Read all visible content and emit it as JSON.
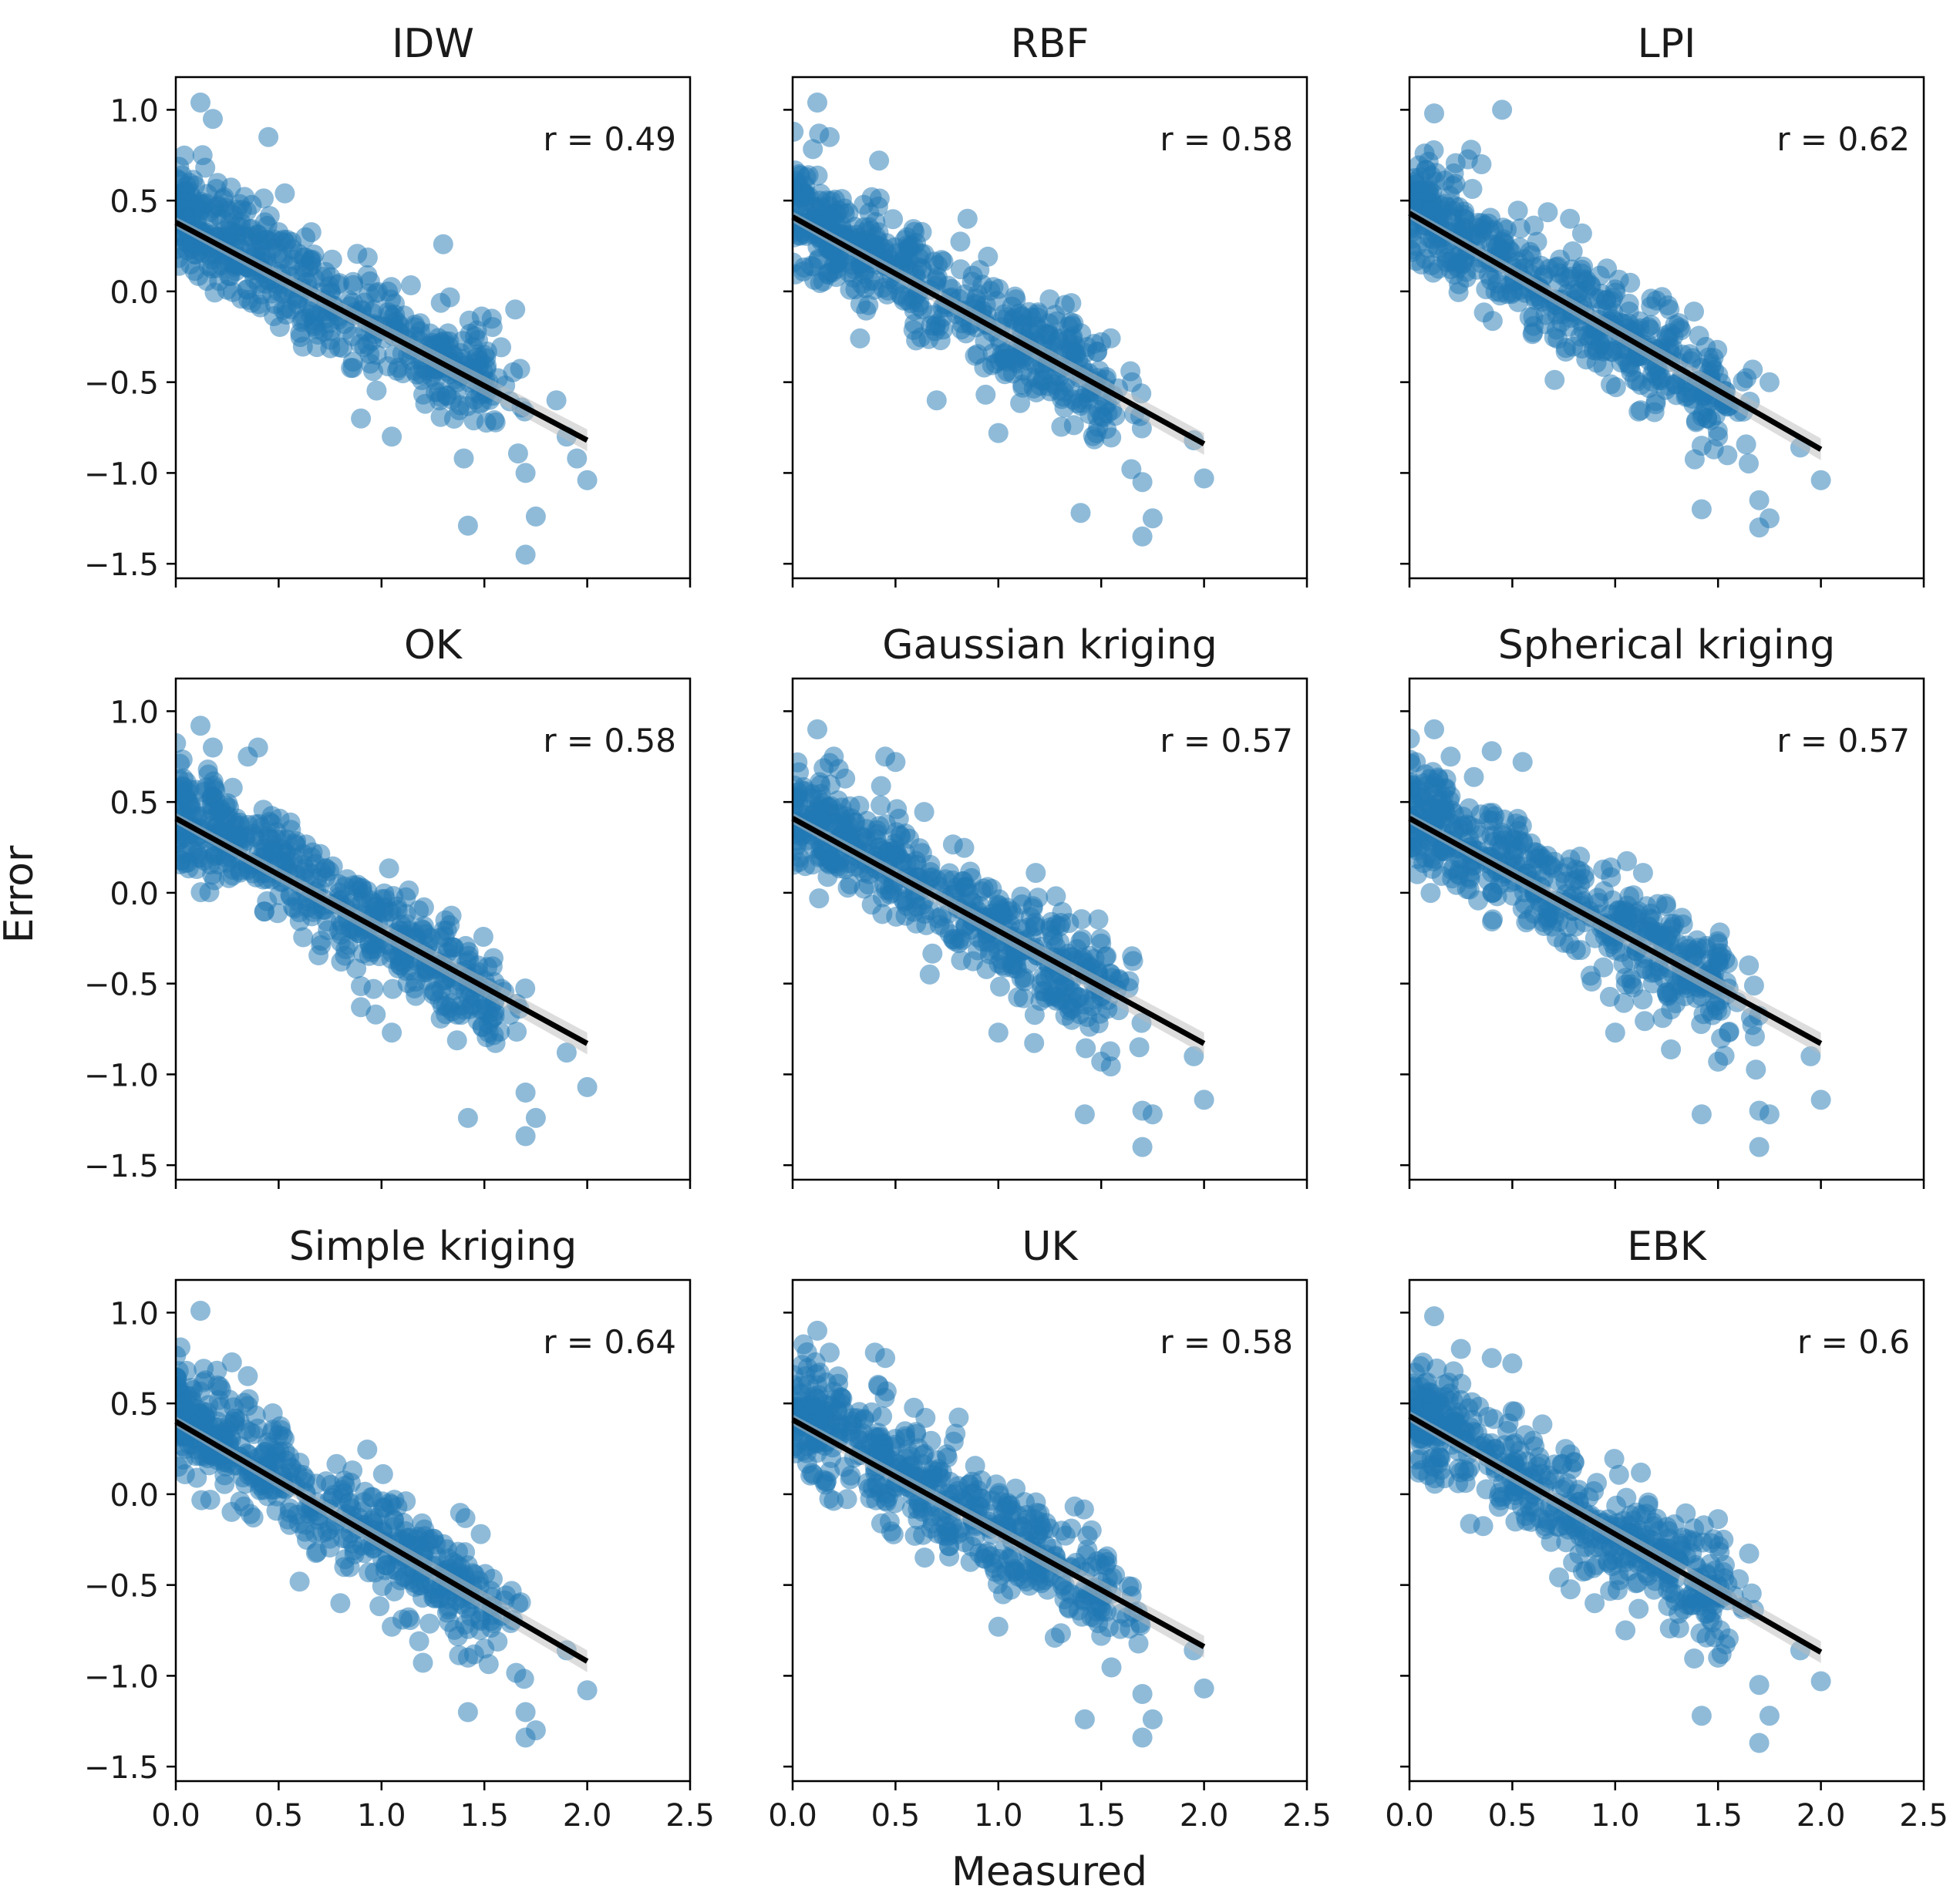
{
  "figure": {
    "ylabel": "Error",
    "xlabel": "Measured",
    "point_color": "#1f77b4",
    "line_color": "#000000"
  },
  "chart_data": [
    {
      "type": "scatter",
      "title": "IDW",
      "annotation": "r = 0.49",
      "xlim": [
        0,
        2.5
      ],
      "ylim": [
        -1.58,
        1.18
      ],
      "xticks": [
        "0.0",
        "0.5",
        "1.0",
        "1.5",
        "2.0",
        "2.5"
      ],
      "yticks": [
        "1.0",
        "0.5",
        "0.0",
        "−0.5",
        "−1.0",
        "−1.5"
      ],
      "fit": {
        "intercept": 0.38,
        "slope": -0.6
      },
      "outliers": [
        [
          0.12,
          1.04
        ],
        [
          0.18,
          0.95
        ],
        [
          0.13,
          0.75
        ],
        [
          0.45,
          0.85
        ],
        [
          1.3,
          0.26
        ],
        [
          1.65,
          -0.1
        ],
        [
          1.5,
          -0.35
        ],
        [
          1.4,
          -0.92
        ],
        [
          1.42,
          -1.29
        ],
        [
          1.7,
          -1.0
        ],
        [
          1.75,
          -1.24
        ],
        [
          1.7,
          -1.45
        ],
        [
          1.9,
          -0.8
        ],
        [
          1.95,
          -0.92
        ],
        [
          2.0,
          -1.04
        ],
        [
          1.85,
          -0.6
        ],
        [
          0.9,
          -0.7
        ],
        [
          1.05,
          -0.8
        ]
      ]
    },
    {
      "type": "scatter",
      "title": "RBF",
      "annotation": "r = 0.58",
      "xlim": [
        0,
        2.5
      ],
      "ylim": [
        -1.58,
        1.18
      ],
      "xticks": [
        "0.0",
        "0.5",
        "1.0",
        "1.5",
        "2.0",
        "2.5"
      ],
      "yticks": [
        "1.0",
        "0.5",
        "0.0",
        "−0.5",
        "−1.0",
        "−1.5"
      ],
      "fit": {
        "intercept": 0.41,
        "slope": -0.625
      },
      "outliers": [
        [
          0.12,
          1.04
        ],
        [
          0.18,
          0.85
        ],
        [
          0.42,
          0.72
        ],
        [
          0.85,
          0.4
        ],
        [
          1.5,
          -0.28
        ],
        [
          1.65,
          -0.5
        ],
        [
          1.4,
          -1.22
        ],
        [
          1.7,
          -1.05
        ],
        [
          1.75,
          -1.25
        ],
        [
          1.7,
          -1.35
        ],
        [
          2.0,
          -1.03
        ],
        [
          1.95,
          -0.82
        ],
        [
          1.0,
          -0.78
        ],
        [
          0.7,
          -0.6
        ]
      ]
    },
    {
      "type": "scatter",
      "title": "LPI",
      "annotation": "r = 0.62",
      "xlim": [
        0,
        2.5
      ],
      "ylim": [
        -1.58,
        1.18
      ],
      "xticks": [
        "0.0",
        "0.5",
        "1.0",
        "1.5",
        "2.0",
        "2.5"
      ],
      "yticks": [
        "1.0",
        "0.5",
        "0.0",
        "−0.5",
        "−1.0",
        "−1.5"
      ],
      "fit": {
        "intercept": 0.43,
        "slope": -0.65
      },
      "outliers": [
        [
          0.12,
          0.98
        ],
        [
          0.45,
          1.0
        ],
        [
          0.3,
          0.78
        ],
        [
          0.35,
          0.7
        ],
        [
          0.78,
          0.4
        ],
        [
          1.2,
          -0.05
        ],
        [
          1.42,
          -0.85
        ],
        [
          1.5,
          -0.8
        ],
        [
          1.42,
          -1.2
        ],
        [
          1.7,
          -1.15
        ],
        [
          1.75,
          -1.25
        ],
        [
          1.7,
          -1.3
        ],
        [
          2.0,
          -1.04
        ],
        [
          1.9,
          -0.86
        ],
        [
          1.75,
          -0.5
        ]
      ]
    },
    {
      "type": "scatter",
      "title": "OK",
      "annotation": "r = 0.58",
      "xlim": [
        0,
        2.5
      ],
      "ylim": [
        -1.58,
        1.18
      ],
      "xticks": [
        "0.0",
        "0.5",
        "1.0",
        "1.5",
        "2.0",
        "2.5"
      ],
      "yticks": [
        "1.0",
        "0.5",
        "0.0",
        "−0.5",
        "−1.0",
        "−1.5"
      ],
      "fit": {
        "intercept": 0.41,
        "slope": -0.62
      },
      "outliers": [
        [
          0.12,
          0.92
        ],
        [
          0.18,
          0.8
        ],
        [
          0.35,
          0.75
        ],
        [
          0.4,
          0.8
        ],
        [
          1.42,
          -1.24
        ],
        [
          1.7,
          -1.1
        ],
        [
          1.75,
          -1.24
        ],
        [
          1.7,
          -1.34
        ],
        [
          2.0,
          -1.07
        ],
        [
          1.9,
          -0.88
        ],
        [
          1.55,
          -0.68
        ],
        [
          0.9,
          -0.63
        ],
        [
          1.05,
          -0.77
        ]
      ]
    },
    {
      "type": "scatter",
      "title": "Gaussian kriging",
      "annotation": "r = 0.57",
      "xlim": [
        0,
        2.5
      ],
      "ylim": [
        -1.58,
        1.18
      ],
      "xticks": [
        "0.0",
        "0.5",
        "1.0",
        "1.5",
        "2.0",
        "2.5"
      ],
      "yticks": [
        "1.0",
        "0.5",
        "0.0",
        "−0.5",
        "−1.0",
        "−1.5"
      ],
      "fit": {
        "intercept": 0.41,
        "slope": -0.62
      },
      "outliers": [
        [
          0.12,
          0.9
        ],
        [
          0.2,
          0.75
        ],
        [
          0.45,
          0.75
        ],
        [
          0.5,
          0.72
        ],
        [
          1.5,
          -0.28
        ],
        [
          1.65,
          -0.35
        ],
        [
          1.42,
          -1.22
        ],
        [
          1.7,
          -1.2
        ],
        [
          1.75,
          -1.22
        ],
        [
          1.7,
          -1.4
        ],
        [
          2.0,
          -1.14
        ],
        [
          1.95,
          -0.9
        ],
        [
          1.5,
          -0.93
        ],
        [
          1.0,
          -0.77
        ]
      ]
    },
    {
      "type": "scatter",
      "title": "Spherical kriging",
      "annotation": "r = 0.57",
      "xlim": [
        0,
        2.5
      ],
      "ylim": [
        -1.58,
        1.18
      ],
      "xticks": [
        "0.0",
        "0.5",
        "1.0",
        "1.5",
        "2.0",
        "2.5"
      ],
      "yticks": [
        "1.0",
        "0.5",
        "0.0",
        "−0.5",
        "−1.0",
        "−1.5"
      ],
      "fit": {
        "intercept": 0.41,
        "slope": -0.62
      },
      "outliers": [
        [
          0.12,
          0.9
        ],
        [
          0.2,
          0.75
        ],
        [
          0.4,
          0.78
        ],
        [
          0.55,
          0.72
        ],
        [
          1.5,
          -0.28
        ],
        [
          1.65,
          -0.4
        ],
        [
          1.42,
          -1.22
        ],
        [
          1.7,
          -1.2
        ],
        [
          1.75,
          -1.22
        ],
        [
          1.7,
          -1.4
        ],
        [
          2.0,
          -1.14
        ],
        [
          1.95,
          -0.9
        ],
        [
          1.5,
          -0.93
        ],
        [
          1.0,
          -0.77
        ]
      ]
    },
    {
      "type": "scatter",
      "title": "Simple kriging",
      "annotation": "r = 0.64",
      "xlim": [
        0,
        2.5
      ],
      "ylim": [
        -1.58,
        1.18
      ],
      "xticks": [
        "0.0",
        "0.5",
        "1.0",
        "1.5",
        "2.0",
        "2.5"
      ],
      "yticks": [
        "1.0",
        "0.5",
        "0.0",
        "−0.5",
        "−1.0",
        "−1.5"
      ],
      "fit": {
        "intercept": 0.4,
        "slope": -0.66
      },
      "outliers": [
        [
          0.12,
          1.01
        ],
        [
          0.2,
          0.68
        ],
        [
          0.35,
          0.65
        ],
        [
          1.42,
          -0.9
        ],
        [
          1.5,
          -0.85
        ],
        [
          1.42,
          -1.2
        ],
        [
          1.7,
          -1.2
        ],
        [
          1.75,
          -1.3
        ],
        [
          1.7,
          -1.34
        ],
        [
          2.0,
          -1.08
        ],
        [
          1.9,
          -0.86
        ],
        [
          1.05,
          -0.73
        ],
        [
          0.8,
          -0.6
        ]
      ]
    },
    {
      "type": "scatter",
      "title": "UK",
      "annotation": "r = 0.58",
      "xlim": [
        0,
        2.5
      ],
      "ylim": [
        -1.58,
        1.18
      ],
      "xticks": [
        "0.0",
        "0.5",
        "1.0",
        "1.5",
        "2.0",
        "2.5"
      ],
      "yticks": [
        "1.0",
        "0.5",
        "0.0",
        "−0.5",
        "−1.0",
        "−1.5"
      ],
      "fit": {
        "intercept": 0.41,
        "slope": -0.625
      },
      "outliers": [
        [
          0.12,
          0.9
        ],
        [
          0.18,
          0.78
        ],
        [
          0.4,
          0.78
        ],
        [
          0.45,
          0.75
        ],
        [
          1.42,
          -1.24
        ],
        [
          1.7,
          -1.1
        ],
        [
          1.75,
          -1.24
        ],
        [
          1.7,
          -1.34
        ],
        [
          2.0,
          -1.07
        ],
        [
          1.95,
          -0.86
        ],
        [
          1.5,
          -0.78
        ],
        [
          1.0,
          -0.73
        ]
      ]
    },
    {
      "type": "scatter",
      "title": "EBK",
      "annotation": "r = 0.6",
      "xlim": [
        0,
        2.5
      ],
      "ylim": [
        -1.58,
        1.18
      ],
      "xticks": [
        "0.0",
        "0.5",
        "1.0",
        "1.5",
        "2.0",
        "2.5"
      ],
      "yticks": [
        "1.0",
        "0.5",
        "0.0",
        "−0.5",
        "−1.0",
        "−1.5"
      ],
      "fit": {
        "intercept": 0.43,
        "slope": -0.65
      },
      "outliers": [
        [
          0.12,
          0.98
        ],
        [
          0.25,
          0.8
        ],
        [
          0.4,
          0.75
        ],
        [
          0.5,
          0.72
        ],
        [
          1.42,
          -1.22
        ],
        [
          1.5,
          -0.9
        ],
        [
          1.7,
          -1.05
        ],
        [
          1.75,
          -1.22
        ],
        [
          1.7,
          -1.37
        ],
        [
          2.0,
          -1.03
        ],
        [
          1.9,
          -0.86
        ],
        [
          1.05,
          -0.75
        ],
        [
          0.9,
          -0.6
        ]
      ]
    }
  ]
}
